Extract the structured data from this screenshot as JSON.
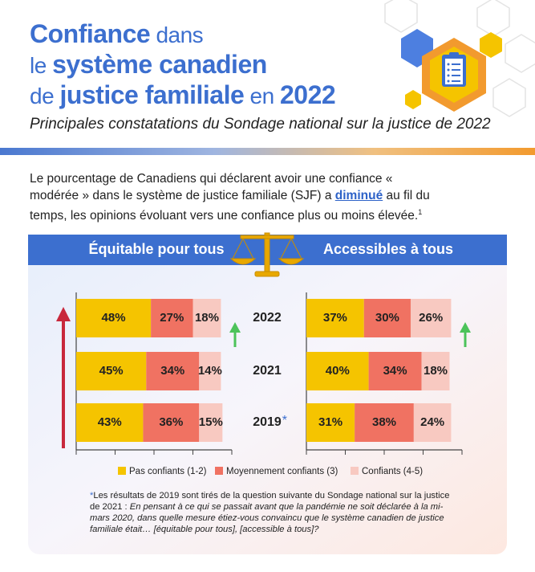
{
  "header": {
    "title_lines": [
      [
        {
          "text": "Confiance",
          "bold": true
        },
        {
          "text": " dans",
          "bold": false
        }
      ],
      [
        {
          "text": "le ",
          "bold": false
        },
        {
          "text": "système canadien",
          "bold": true
        }
      ],
      [
        {
          "text": "de ",
          "bold": false
        },
        {
          "text": "justice familiale",
          "bold": true
        },
        {
          "text": " en ",
          "bold": false
        },
        {
          "text": "2022",
          "bold": true
        }
      ]
    ],
    "subtitle": "Principales constatations du Sondage national sur la justice de 2022"
  },
  "intro": [
    {
      "text": "Le pourcentage de Canadiens qui déclarent avoir une confiance « modérée » dans le système de justice familiale (SJF) a ",
      "style": "normal"
    },
    {
      "text": "diminué",
      "style": "emphasis"
    },
    {
      "text": " au fil du temps, les opinions évoluant vers une confiance plus ou moins élevée.",
      "style": "normal"
    },
    {
      "text": "1",
      "style": "sup"
    }
  ],
  "footnote": [
    {
      "text": "*",
      "style": "mark"
    },
    {
      "text": "Les résultats de 2019 sont tirés de la question suivante du Sondage national sur la justice de 2021 : ",
      "style": "normal"
    },
    {
      "text": "En pensant à ce qui se passait avant que la pandémie ne soit déclarée à la mi-mars 2020, dans quelle mesure étiez-vous convaincu que le système canadien de justice familiale était… [équitable pour tous], [accessible à tous]?",
      "style": "italic"
    }
  ],
  "chart_data": [
    {
      "type": "stacked-bar-horizontal",
      "title": "Équitable pour tous",
      "categories": [
        "2022",
        "2021",
        "2019"
      ],
      "category_notes": [
        null,
        null,
        "*"
      ],
      "xlim": [
        0,
        100
      ],
      "xticks": [
        0,
        25,
        50,
        75,
        100
      ],
      "series": [
        {
          "name": "Pas confiants (1-2)",
          "color": "#f5c400",
          "values": [
            48,
            45,
            43
          ],
          "value_labels": [
            "48%",
            "45%",
            "43%"
          ]
        },
        {
          "name": "Moyennement confiants (3)",
          "color": "#f07262",
          "values": [
            27,
            34,
            36
          ],
          "value_labels": [
            "27%",
            "34%",
            "36%"
          ]
        },
        {
          "name": "Confiants (4-5)",
          "color": "#f8c9c1",
          "values": [
            18,
            14,
            15
          ],
          "value_labels": [
            "18%",
            "14%",
            "15%"
          ]
        }
      ]
    },
    {
      "type": "stacked-bar-horizontal",
      "title": "Accessibles à tous",
      "xlim": [
        0,
        100
      ],
      "xticks": [
        0,
        25,
        50,
        75,
        100
      ],
      "series": [
        {
          "color": "#f5c400",
          "values": [
            37,
            40,
            31
          ],
          "value_labels": [
            "37%",
            "40%",
            "31%"
          ]
        },
        {
          "color": "#f07262",
          "values": [
            30,
            34,
            38
          ],
          "value_labels": [
            "30%",
            "34%",
            "38%"
          ]
        },
        {
          "color": "#f8c9c1",
          "values": [
            26,
            18,
            24
          ],
          "value_labels": [
            "26%",
            "18%",
            "24%"
          ]
        }
      ]
    }
  ]
}
